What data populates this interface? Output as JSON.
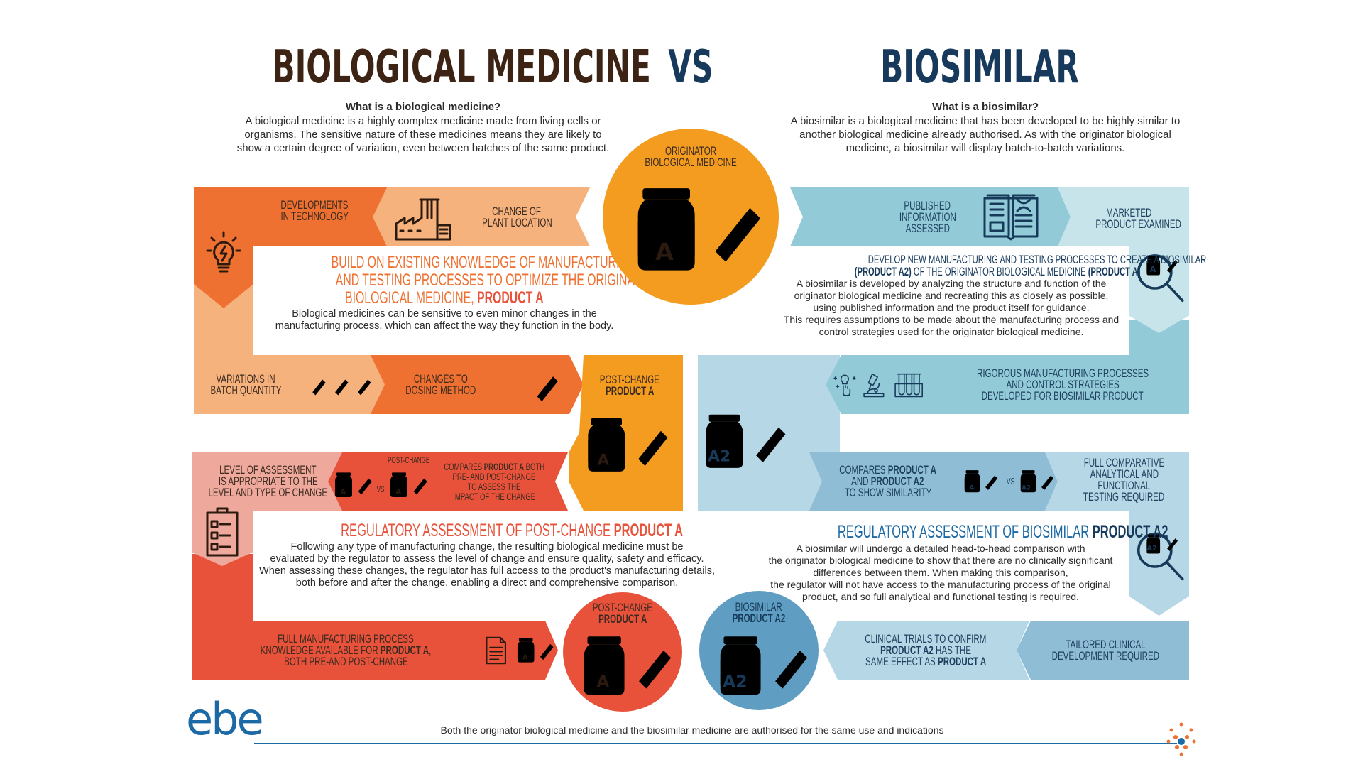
{
  "header": {
    "title_left": "BIOLOGICAL MEDICINE",
    "vs": "VS",
    "title_right": "BIOSIMILAR",
    "left_question": "What is a biological medicine?",
    "left_intro": [
      "A biological medicine is a highly complex medicine made from living cells or",
      "organisms. The sensitive nature of these medicines means they are likely to",
      "show a certain degree of variation, even between batches of the same product."
    ],
    "right_question": "What is a biosimilar?",
    "right_intro": [
      "A biosimilar is a biological medicine that has been developed to be highly similar to",
      "another biological medicine already authorised. As with the originator biological",
      "medicine, a biosimilar will display batch-to-batch variations."
    ]
  },
  "originator": {
    "label": [
      "ORIGINATOR",
      "BIOLOGICAL MEDICINE"
    ],
    "jar_letter": "A"
  },
  "left": {
    "developments": [
      "DEVELOPMENTS",
      "IN TECHNOLOGY"
    ],
    "plant": [
      "CHANGE OF",
      "PLANT LOCATION"
    ],
    "build_heading": [
      "BUILD ON EXISTING KNOWLEDGE OF MANUFACTURING",
      "AND TESTING PROCESSES TO OPTIMIZE THE ORIGINATOR",
      "BIOLOGICAL MEDICINE, "
    ],
    "build_heading_bold": "PRODUCT A",
    "build_body": [
      "Biological medicines can be sensitive to even minor changes in the",
      "manufacturing process, which can affect the way they function in the body."
    ],
    "variations": [
      "VARIATIONS IN",
      "BATCH QUANTITY"
    ],
    "dosing": [
      "CHANGES TO",
      "DOSING METHOD"
    ],
    "post_change": {
      "line1": "POST-CHANGE",
      "line2": "PRODUCT A",
      "jar_letter": "A"
    },
    "level": [
      "LEVEL OF ASSESSMENT",
      "IS APPROPRIATE TO THE",
      "LEVEL AND TYPE OF CHANGE"
    ],
    "compare_small_label": "POST-CHANGE",
    "compare_vs": "VS",
    "compare_jar_letter": "A",
    "compare": {
      "pre": "COMPARES ",
      "bold": "PRODUCT A",
      "post": " BOTH",
      "lines": [
        "PRE- AND POST-CHANGE",
        "TO ASSESS THE",
        "IMPACT OF THE CHANGE"
      ]
    },
    "reg_heading": "REGULATORY ASSESSMENT OF POST-CHANGE ",
    "reg_heading_bold": "PRODUCT A",
    "reg_body": [
      "Following any type of manufacturing change, the resulting biological medicine must be",
      "evaluated by the regulator to assess the level of change and ensure quality, safety and efficacy.",
      "When assessing these changes, the regulator has full access to the product's manufacturing details,",
      "both before and after the change, enabling a direct and comprehensive comparison."
    ],
    "full_knowledge": {
      "line1": "FULL MANUFACTURING PROCESS",
      "line2_pre": "KNOWLEDGE AVAILABLE FOR ",
      "line2_bold": "PRODUCT A",
      "line2_post": ",",
      "line3": "BOTH PRE-AND POST-CHANGE"
    },
    "post_circle": {
      "line1": "POST-CHANGE",
      "line2": "PRODUCT A",
      "jar_letter": "A"
    }
  },
  "right": {
    "published": [
      "PUBLISHED",
      "INFORMATION",
      "ASSESSED"
    ],
    "marketed": [
      "MARKETED",
      "PRODUCT EXAMINED"
    ],
    "develop_heading1": "DEVELOP NEW MANUFACTURING AND TESTING PROCESSES TO CREATE A BIOSIMILAR",
    "develop_heading2_bold1": "(PRODUCT A2)",
    "develop_heading2_mid": " OF THE ORIGINATOR BIOLOGICAL MEDICINE ",
    "develop_heading2_bold2": "(PRODUCT A)",
    "develop_body": [
      "A biosimilar is developed by analyzing the structure and function of the",
      "originator biological medicine and recreating this as closely as possible,",
      "using published information and the product itself for guidance.",
      "This requires assumptions to be made about the manufacturing process and",
      "control strategies used for the originator biological medicine."
    ],
    "rigorous": [
      "RIGOROUS MANUFACTURING PROCESSES",
      "AND CONTROL STRATEGIES",
      "DEVELOPED FOR BIOSIMILAR PRODUCT"
    ],
    "big_jar_letter": "A2",
    "compares": {
      "l1_pre": "COMPARES ",
      "l1_bold": "PRODUCT A",
      "l2_pre": "AND ",
      "l2_bold": "PRODUCT A2",
      "l3": "TO SHOW SIMILARITY",
      "jar1": "A",
      "vs": "VS",
      "jar2": "A2"
    },
    "full_comparative": [
      "FULL COMPARATIVE",
      "ANALYTICAL AND",
      "FUNCTIONAL",
      "TESTING REQUIRED"
    ],
    "magnifier_jar_top": "A",
    "magnifier_jar_bottom": "A2",
    "reg_heading": "REGULATORY ASSESSMENT OF BIOSIMILAR ",
    "reg_heading_bold": "PRODUCT A2",
    "reg_body": [
      "A biosimilar will undergo a detailed head-to-head comparison with",
      "the originator biological medicine to show that there are no clinically significant",
      "differences between them. When making this comparison,",
      "the regulator will not have access to the manufacturing process of the original",
      "product, and so full analytical and functional testing is required."
    ],
    "biosimilar_circle": {
      "line1": "BIOSIMILAR",
      "line2": "PRODUCT A2",
      "jar_letter": "A2"
    },
    "clinical": {
      "l1": "CLINICAL TRIALS TO CONFIRM",
      "l2_bold": "PRODUCT A2",
      "l2_post": " HAS THE",
      "l3_pre": "SAME EFFECT AS ",
      "l3_bold": "PRODUCT A"
    },
    "tailored": [
      "TAILORED CLINICAL",
      "DEVELOPMENT REQUIRED"
    ]
  },
  "footer": {
    "logo": "ebe",
    "statement": "Both the originator biological medicine and the biosimilar medicine are authorised for the same use and indications"
  },
  "colors": {
    "brown_title": "#3d2314",
    "navy_title": "#17395c",
    "orange_dark": "#ef7131",
    "orange_light": "#f6b27d",
    "orange_mid": "#f39c20",
    "red": "#e8523a",
    "pink": "#efa99c",
    "teal": "#92cbd7",
    "teal_light": "#c6e4ea",
    "blue_mid": "#8fbdd6",
    "blue_light": "#b6d8e6",
    "blue_circle": "#5f9ec2",
    "logo_blue": "#1b6aa6"
  }
}
